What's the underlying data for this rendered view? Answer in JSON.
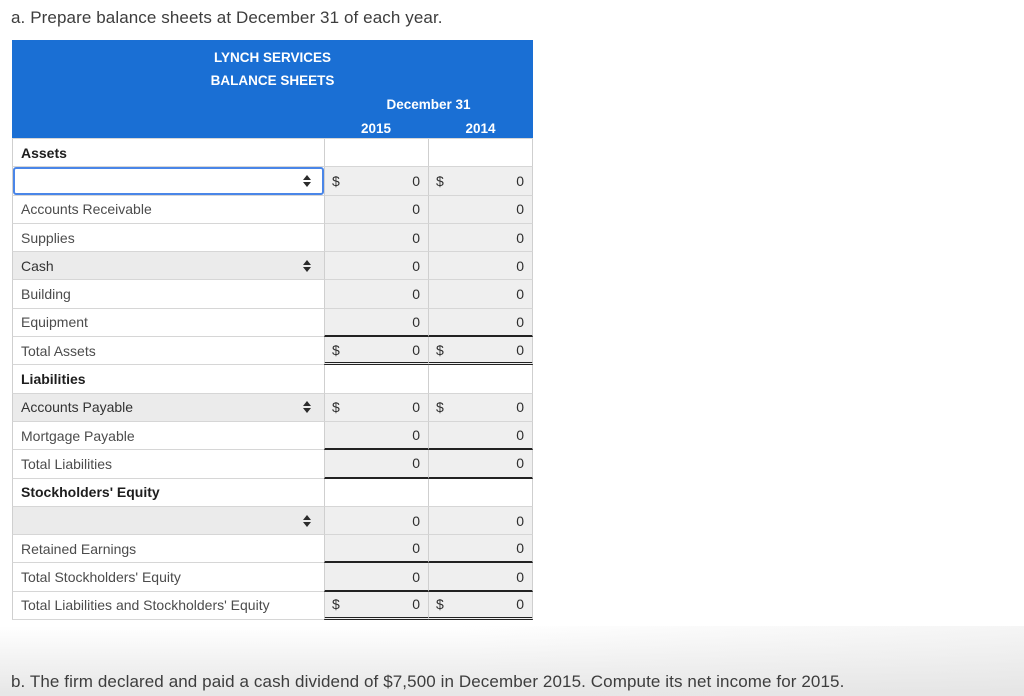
{
  "page": {
    "instruction_a": "a. Prepare balance sheets at December 31 of each year.",
    "instruction_b": "b. The firm declared and paid a cash dividend of $7,500 in December 2015. Compute its net income for 2015."
  },
  "colors": {
    "header_blue": "#1a6fd4",
    "header_text": "#ffffff",
    "cell_gray": "#efefef",
    "select_gray": "#ebebeb",
    "focus_border_blue": "#4a86e8",
    "underline_dark": "#222222"
  },
  "icons": {
    "select_indicator": "up-down-arrows-icon"
  },
  "table": {
    "company": "LYNCH SERVICES",
    "title": "BALANCE SHEETS",
    "date_header": "December 31",
    "years": [
      "2015",
      "2014"
    ],
    "rows": [
      {
        "kind": "section",
        "label": "Assets",
        "d2015": "",
        "v2015": "",
        "d2014": "",
        "v2014": "",
        "underline": "",
        "focused": false
      },
      {
        "kind": "select",
        "label": "",
        "d2015": "$",
        "v2015": "0",
        "d2014": "$",
        "v2014": "0",
        "underline": "",
        "focused": true
      },
      {
        "kind": "text",
        "label": "Accounts Receivable",
        "d2015": "",
        "v2015": "0",
        "d2014": "",
        "v2014": "0",
        "underline": "",
        "focused": false
      },
      {
        "kind": "text",
        "label": "Supplies",
        "d2015": "",
        "v2015": "0",
        "d2014": "",
        "v2014": "0",
        "underline": "",
        "focused": false
      },
      {
        "kind": "select",
        "label": "Cash",
        "d2015": "",
        "v2015": "0",
        "d2014": "",
        "v2014": "0",
        "underline": "",
        "focused": false
      },
      {
        "kind": "text",
        "label": "Building",
        "d2015": "",
        "v2015": "0",
        "d2014": "",
        "v2014": "0",
        "underline": "",
        "focused": false
      },
      {
        "kind": "text",
        "label": "Equipment",
        "d2015": "",
        "v2015": "0",
        "d2014": "",
        "v2014": "0",
        "underline": "single",
        "focused": false
      },
      {
        "kind": "text",
        "label": "Total Assets",
        "d2015": "$",
        "v2015": "0",
        "d2014": "$",
        "v2014": "0",
        "underline": "double",
        "focused": false
      },
      {
        "kind": "section",
        "label": "Liabilities",
        "d2015": "",
        "v2015": "",
        "d2014": "",
        "v2014": "",
        "underline": "",
        "focused": false
      },
      {
        "kind": "select",
        "label": "Accounts Payable",
        "d2015": "$",
        "v2015": "0",
        "d2014": "$",
        "v2014": "0",
        "underline": "",
        "focused": false
      },
      {
        "kind": "text",
        "label": "Mortgage Payable",
        "d2015": "",
        "v2015": "0",
        "d2014": "",
        "v2014": "0",
        "underline": "single",
        "focused": false
      },
      {
        "kind": "text",
        "label": "Total Liabilities",
        "d2015": "",
        "v2015": "0",
        "d2014": "",
        "v2014": "0",
        "underline": "single",
        "focused": false
      },
      {
        "kind": "section",
        "label": "Stockholders' Equity",
        "d2015": "",
        "v2015": "",
        "d2014": "",
        "v2014": "",
        "underline": "",
        "focused": false
      },
      {
        "kind": "select",
        "label": "",
        "d2015": "",
        "v2015": "0",
        "d2014": "",
        "v2014": "0",
        "underline": "",
        "focused": false
      },
      {
        "kind": "text",
        "label": "Retained Earnings",
        "d2015": "",
        "v2015": "0",
        "d2014": "",
        "v2014": "0",
        "underline": "single",
        "focused": false
      },
      {
        "kind": "text",
        "label": "Total Stockholders' Equity",
        "d2015": "",
        "v2015": "0",
        "d2014": "",
        "v2014": "0",
        "underline": "single",
        "focused": false
      },
      {
        "kind": "text",
        "label": "Total Liabilities and Stockholders' Equity",
        "d2015": "$",
        "v2015": "0",
        "d2014": "$",
        "v2014": "0",
        "underline": "double",
        "focused": false
      }
    ]
  }
}
